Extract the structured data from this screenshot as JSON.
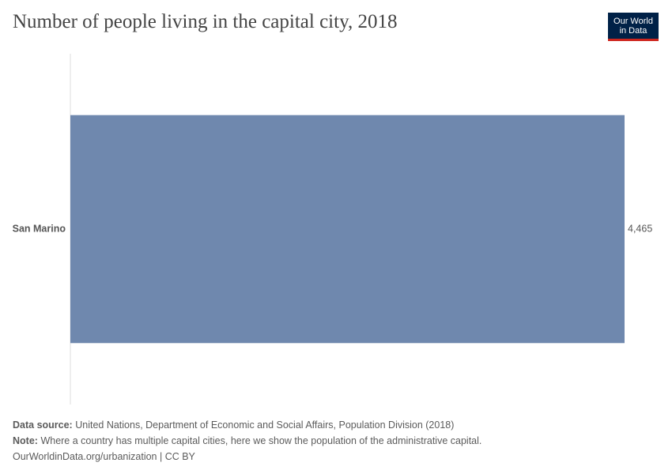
{
  "title": "Number of people living in the capital city, 2018",
  "logo": {
    "line1": "Our World",
    "line2": "in Data"
  },
  "colors": {
    "bar": "#6f88ae",
    "title": "#444444",
    "text": "#5b5b5b",
    "logo_bg": "#002147",
    "logo_accent": "#ce261e"
  },
  "chart_data": {
    "type": "bar",
    "orientation": "horizontal",
    "categories": [
      "San Marino"
    ],
    "values": [
      4465
    ],
    "value_labels": [
      "4,465"
    ],
    "title": "Number of people living in the capital city, 2018",
    "xlabel": "",
    "ylabel": "",
    "xlim": [
      0,
      4465
    ],
    "grid": false
  },
  "footer": {
    "source_label": "Data source:",
    "source_text": "United Nations, Department of Economic and Social Affairs, Population Division (2018)",
    "note_label": "Note:",
    "note_text": "Where a country has multiple capital cities, here we show the population of the administrative capital.",
    "url_text": "OurWorldinData.org/urbanization | CC BY"
  }
}
